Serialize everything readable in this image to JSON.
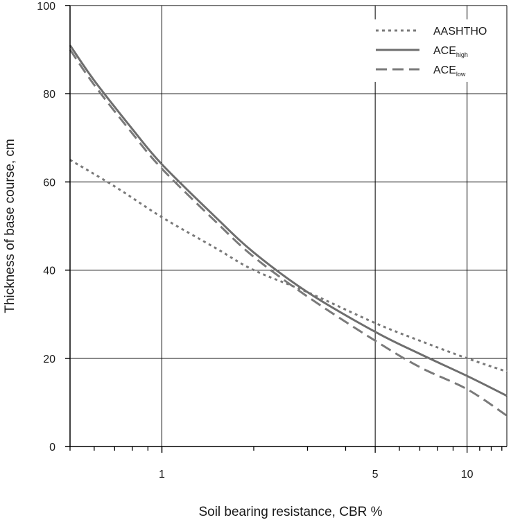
{
  "chart_data": {
    "type": "line",
    "title": "",
    "xlabel": "Soil bearing resistance, CBR %",
    "ylabel": "Thickness of base course, cm",
    "x_scale": "log",
    "xlim": [
      0.5,
      13.5
    ],
    "ylim": [
      0,
      100
    ],
    "x_ticks": [
      1,
      5,
      10
    ],
    "x_tick_labels": [
      "1",
      "5",
      "10"
    ],
    "y_ticks": [
      0,
      20,
      40,
      60,
      80,
      100
    ],
    "y_tick_labels": [
      "0",
      "20",
      "40",
      "60",
      "80",
      "100"
    ],
    "grid": true,
    "legend_position": "top-right",
    "series": [
      {
        "name": "AASHTHO",
        "legend_main": "AASHTHO",
        "legend_sub": "",
        "color": "#7a7a7a",
        "style": "dotted",
        "x": [
          0.5,
          0.7,
          1.0,
          1.5,
          2.0,
          3.0,
          5.0,
          7.0,
          10.0,
          13.5
        ],
        "y": [
          65,
          59,
          52,
          45,
          40,
          35,
          28,
          24,
          20,
          17
        ]
      },
      {
        "name": "ACEhigh",
        "legend_main": "ACE",
        "legend_sub": "high",
        "color": "#6e6e6e",
        "style": "solid",
        "x": [
          0.5,
          0.6,
          0.8,
          1.0,
          1.5,
          2.0,
          3.0,
          5.0,
          7.0,
          10.0,
          13.5
        ],
        "y": [
          91,
          83,
          72,
          64,
          52,
          44,
          35,
          26,
          21,
          16,
          11.5
        ]
      },
      {
        "name": "ACElow",
        "legend_main": "ACE",
        "legend_sub": "low",
        "color": "#7a7a7a",
        "style": "dashed",
        "x": [
          0.5,
          0.6,
          0.8,
          1.0,
          1.5,
          2.0,
          3.0,
          5.0,
          7.0,
          10.0,
          13.5
        ],
        "y": [
          90,
          82,
          71,
          63,
          51,
          43,
          34,
          24,
          18,
          13,
          7
        ]
      }
    ]
  }
}
